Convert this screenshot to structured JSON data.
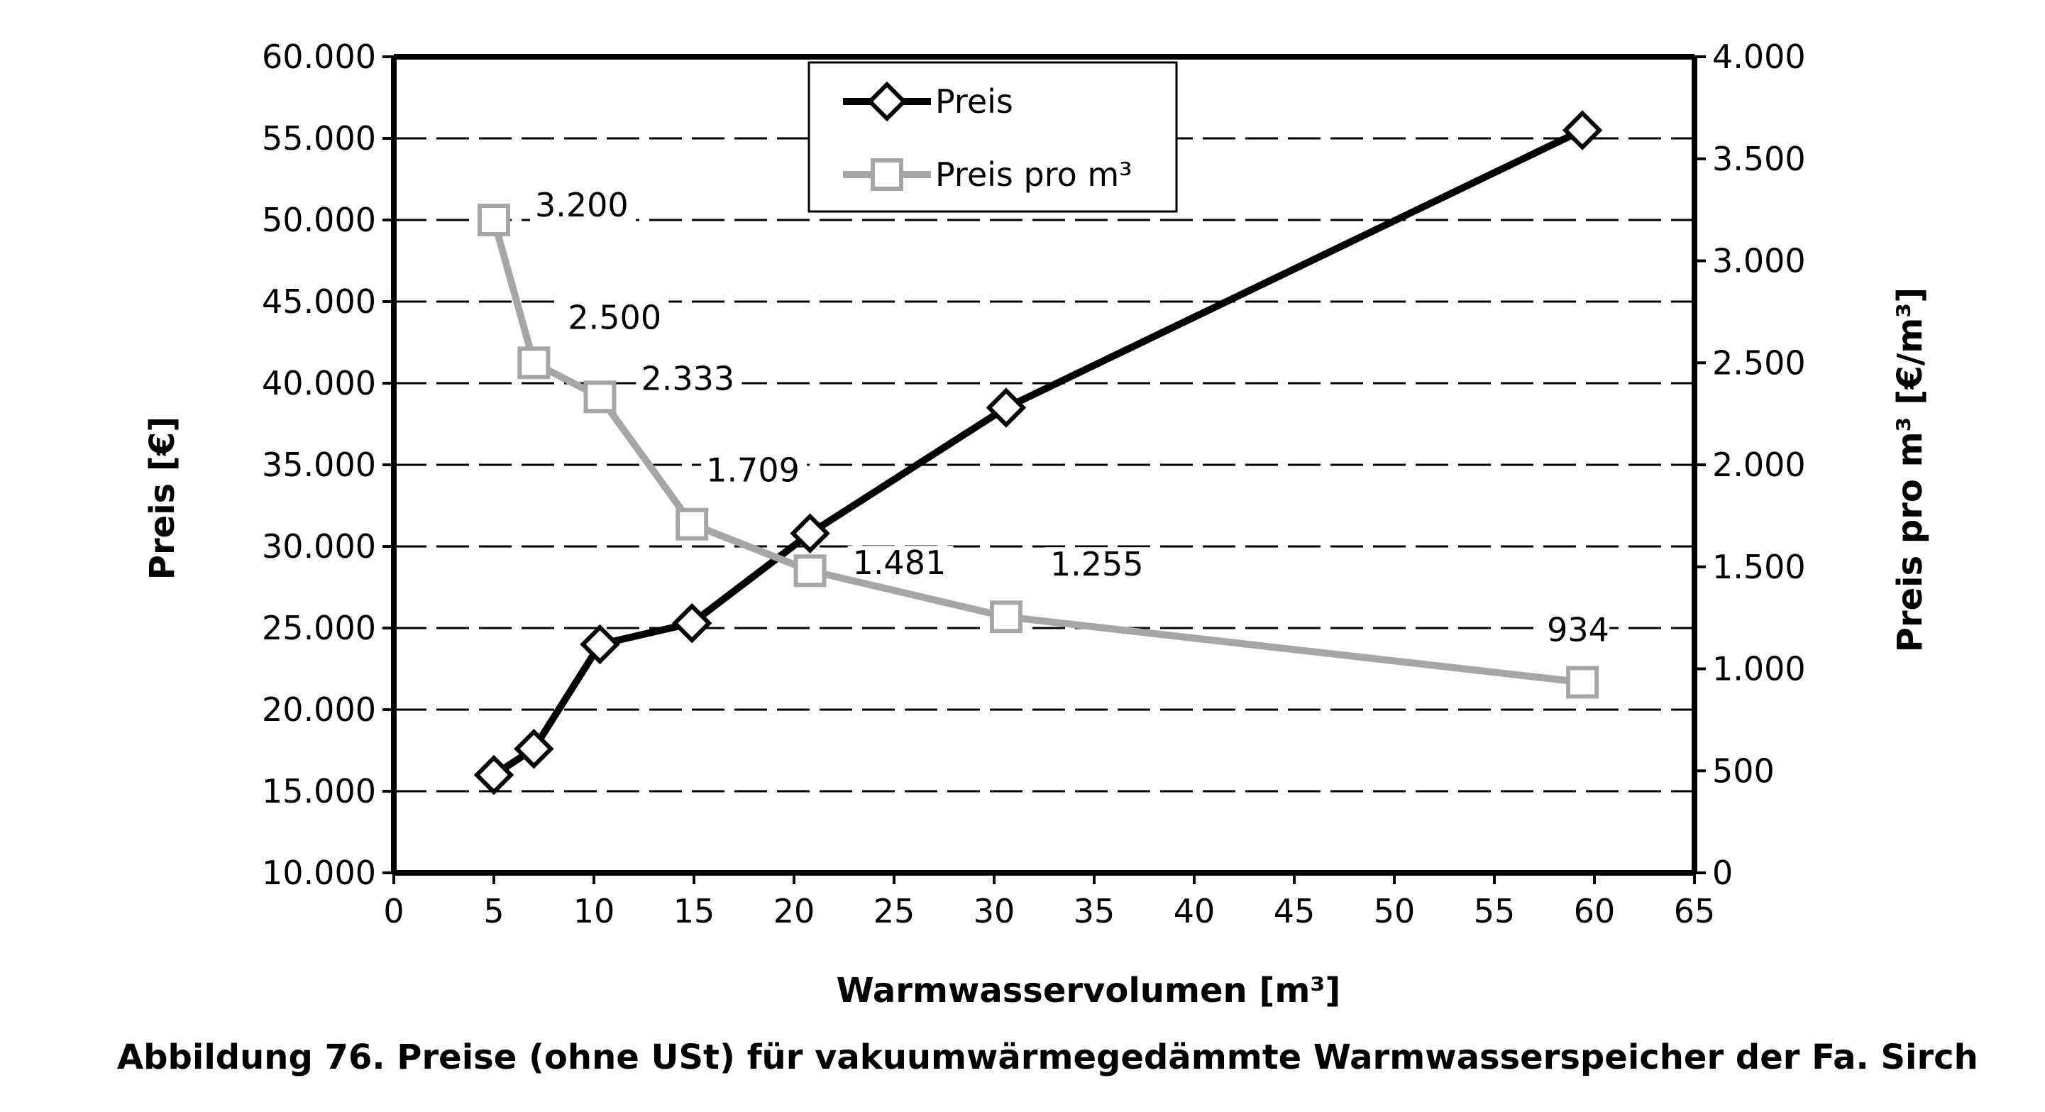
{
  "caption": "Abbildung 76. Preise (ohne USt) für vakuumwärmegedämmte Warmwasserspeicher der Fa. Sirch",
  "chart_data": {
    "type": "line",
    "xlabel": "Warmwasservolumen [m³]",
    "ylabel_left": "Preis [€]",
    "ylabel_right": "Preis pro m³ [€/m³]",
    "xlim": [
      0,
      65
    ],
    "ylim_left": [
      10000,
      60000
    ],
    "ylim_right": [
      0,
      4000
    ],
    "x_ticks": [
      0,
      5,
      10,
      15,
      20,
      25,
      30,
      35,
      40,
      45,
      50,
      55,
      60,
      65
    ],
    "x_tick_labels": [
      "0",
      "5",
      "10",
      "15",
      "20",
      "25",
      "30",
      "35",
      "40",
      "45",
      "50",
      "55",
      "60",
      "65"
    ],
    "y_left_ticks": [
      10000,
      15000,
      20000,
      25000,
      30000,
      35000,
      40000,
      45000,
      50000,
      55000,
      60000
    ],
    "y_left_tick_labels": [
      "10.000",
      "15.000",
      "20.000",
      "25.000",
      "30.000",
      "35.000",
      "40.000",
      "45.000",
      "50.000",
      "55.000",
      "60.000"
    ],
    "y_right_ticks": [
      0,
      500,
      1000,
      1500,
      2000,
      2500,
      3000,
      3500,
      4000
    ],
    "y_right_tick_labels": [
      "0",
      "500",
      "1.000",
      "1.500",
      "2.000",
      "2.500",
      "3.000",
      "3.500",
      "4.000"
    ],
    "grid": "horizontal dashed",
    "legend_position": "top-center",
    "series": [
      {
        "name": "Preis",
        "axis": "left",
        "color": "#000000",
        "marker": "diamond",
        "points": [
          [
            5,
            16000
          ],
          [
            7,
            17600
          ],
          [
            10.3,
            24000
          ],
          [
            14.9,
            25300
          ],
          [
            20.8,
            30800
          ],
          [
            30.6,
            38500
          ],
          [
            59.4,
            55500
          ]
        ]
      },
      {
        "name": "Preis pro m³",
        "axis": "right",
        "color": "#a6a6a6",
        "marker": "square",
        "points": [
          [
            5,
            3200
          ],
          [
            7,
            2500
          ],
          [
            10.3,
            2333
          ],
          [
            14.9,
            1709
          ],
          [
            20.8,
            1481
          ],
          [
            30.6,
            1255
          ],
          [
            59.4,
            934
          ]
        ],
        "labels": [
          "3.200",
          "2.500",
          "2.333",
          "1.709",
          "1.481",
          "1.255",
          "934"
        ]
      }
    ]
  }
}
